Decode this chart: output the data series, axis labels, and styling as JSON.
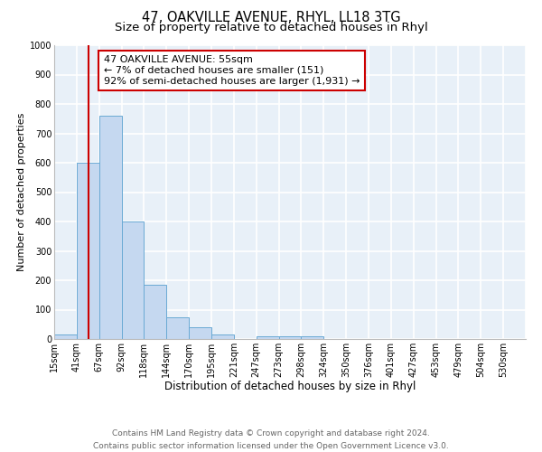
{
  "title": "47, OAKVILLE AVENUE, RHYL, LL18 3TG",
  "subtitle": "Size of property relative to detached houses in Rhyl",
  "xlabel": "Distribution of detached houses by size in Rhyl",
  "ylabel": "Number of detached properties",
  "bin_labels": [
    "15sqm",
    "41sqm",
    "67sqm",
    "92sqm",
    "118sqm",
    "144sqm",
    "170sqm",
    "195sqm",
    "221sqm",
    "247sqm",
    "273sqm",
    "298sqm",
    "324sqm",
    "350sqm",
    "376sqm",
    "401sqm",
    "427sqm",
    "453sqm",
    "479sqm",
    "504sqm",
    "530sqm"
  ],
  "bar_heights": [
    15,
    600,
    760,
    400,
    185,
    75,
    40,
    15,
    0,
    10,
    10,
    10,
    0,
    0,
    0,
    0,
    0,
    0,
    0,
    0,
    0
  ],
  "bar_color": "#c5d8f0",
  "bar_edge_color": "#6aaad4",
  "background_color": "#e8f0f8",
  "grid_color": "#ffffff",
  "vline_color": "#cc0000",
  "annotation_box_text": "47 OAKVILLE AVENUE: 55sqm\n← 7% of detached houses are smaller (151)\n92% of semi-detached houses are larger (1,931) →",
  "annotation_box_edgecolor": "#cc0000",
  "ylim": [
    0,
    1000
  ],
  "yticks": [
    0,
    100,
    200,
    300,
    400,
    500,
    600,
    700,
    800,
    900,
    1000
  ],
  "footer_line1": "Contains HM Land Registry data © Crown copyright and database right 2024.",
  "footer_line2": "Contains public sector information licensed under the Open Government Licence v3.0.",
  "title_fontsize": 10.5,
  "subtitle_fontsize": 9.5,
  "xlabel_fontsize": 8.5,
  "ylabel_fontsize": 8,
  "tick_fontsize": 7,
  "footer_fontsize": 6.5,
  "annotation_fontsize": 8
}
